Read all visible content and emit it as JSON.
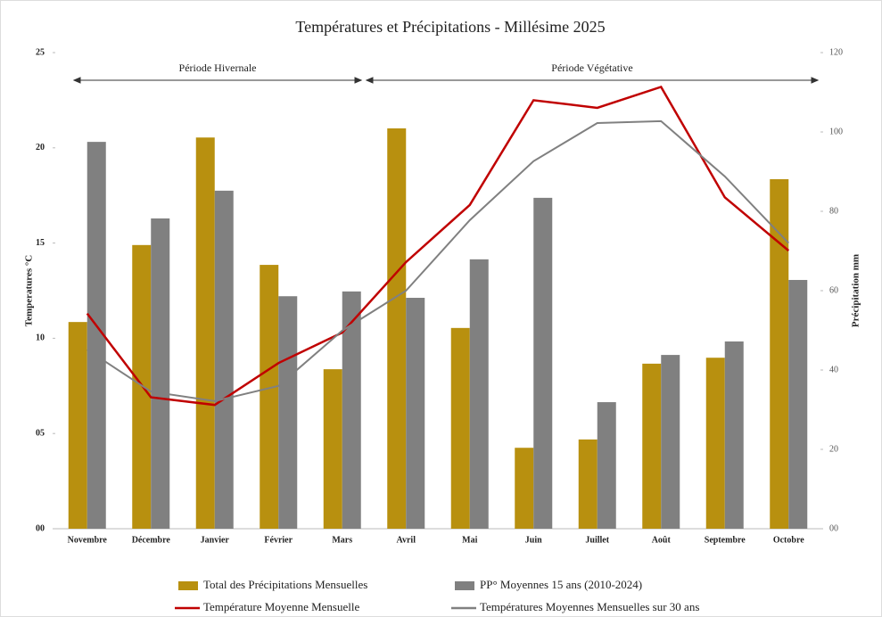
{
  "chart_data": {
    "type": "bar-line",
    "title": "Températures et Précipitations - Millésime 2025",
    "y_label": "Temperatures °C",
    "y2_label": "Précipitation mm",
    "annotations": [
      "Période Hivernale",
      "Période Végétative"
    ],
    "categories": [
      "Novembre",
      "Décembre",
      "Janvier",
      "Février",
      "Mars",
      "Avril",
      "Mai",
      "Juin",
      "Juillet",
      "Août",
      "Septembre",
      "Octobre"
    ],
    "series": [
      {
        "name": "Total des Précipitations Mensuelles",
        "kind": "bar",
        "axis": "y2",
        "color": "#b8900f",
        "values": [
          52.1,
          71.5,
          98.6,
          66.5,
          40.2,
          100.9,
          50.6,
          20.4,
          22.5,
          41.6,
          43.1,
          88.1
        ]
      },
      {
        "name": "PP° Moyennes 15 ans (2010-2024)",
        "kind": "bar",
        "axis": "y2",
        "color": "#808080",
        "values": [
          97.5,
          78.2,
          85.2,
          58.6,
          59.8,
          58.2,
          67.9,
          83.4,
          31.9,
          43.8,
          47.2,
          62.7
        ]
      },
      {
        "name": "Température Moyenne Mensuelle",
        "kind": "line",
        "color": "#c00000",
        "values": [
          11.3,
          6.9,
          6.5,
          8.7,
          10.3,
          14.0,
          17.0,
          22.5,
          22.1,
          23.2,
          17.4,
          14.6
        ]
      },
      {
        "name": "Températures Moyennes Mensuelles sur 30 ans",
        "kind": "line",
        "color": "#808080",
        "values": [
          9.4,
          7.2,
          6.7,
          7.5,
          10.4,
          12.5,
          16.2,
          19.3,
          21.3,
          21.4,
          18.5,
          15.0
        ]
      }
    ],
    "ylim": [
      0,
      25
    ],
    "yticks": [
      {
        "value": 0,
        "label": "00"
      },
      {
        "value": 5,
        "label": "05"
      },
      10,
      15,
      20,
      25
    ],
    "y2lim": [
      0,
      120
    ],
    "y2ticks": [
      {
        "value": 0,
        "label": "00"
      },
      20,
      40,
      60,
      80,
      100,
      120
    ]
  }
}
